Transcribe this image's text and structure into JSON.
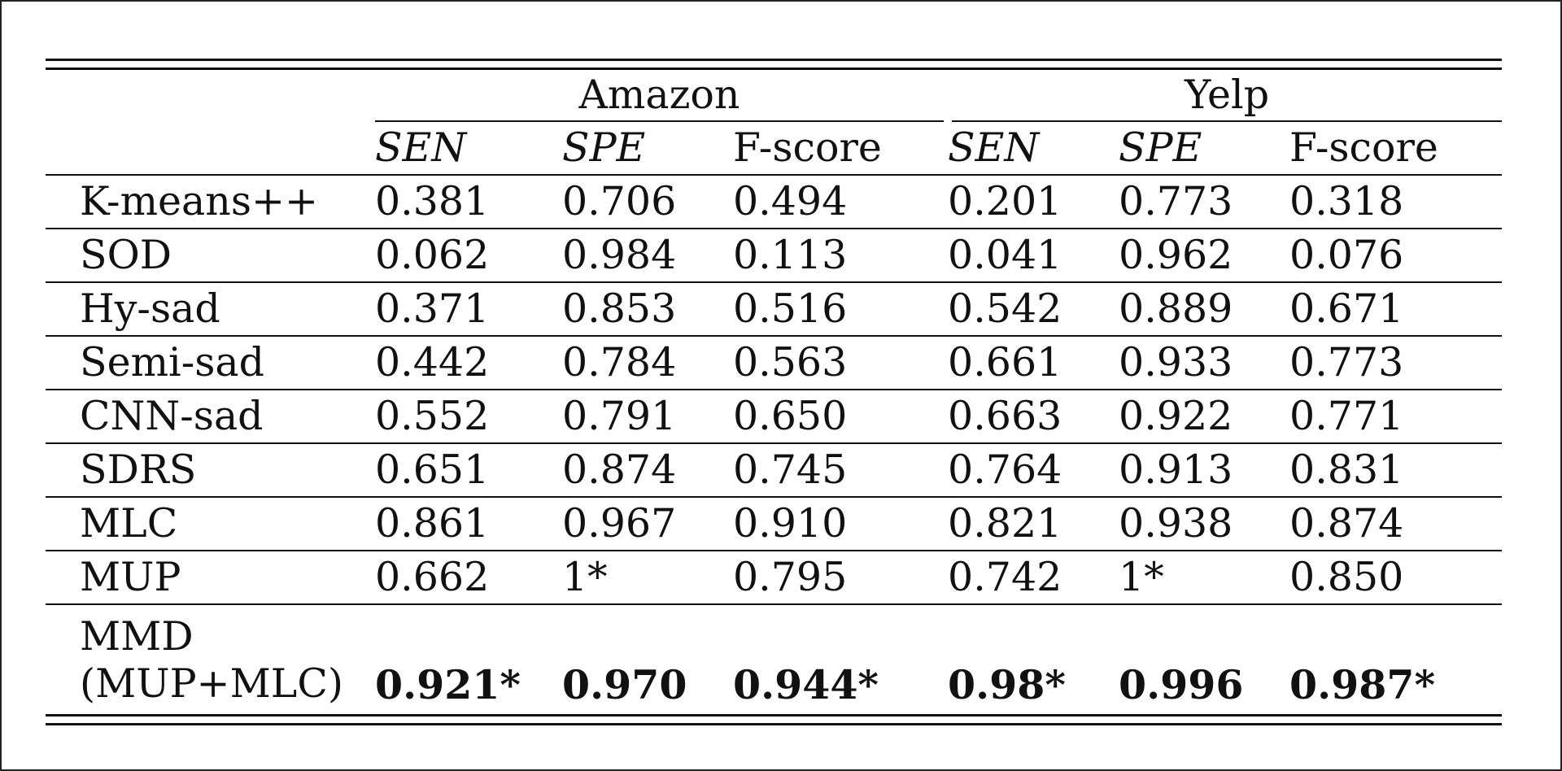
{
  "table": {
    "groups": [
      {
        "label": "Amazon"
      },
      {
        "label": "Yelp"
      }
    ],
    "metrics": [
      "SEN",
      "SPE",
      "F-score",
      "SEN",
      "SPE",
      "F-score"
    ],
    "rows": [
      {
        "method": "K-means++",
        "values": [
          "0.381",
          "0.706",
          "0.494",
          "0.201",
          "0.773",
          "0.318"
        ]
      },
      {
        "method": "SOD",
        "values": [
          "0.062",
          "0.984",
          "0.113",
          "0.041",
          "0.962",
          "0.076"
        ]
      },
      {
        "method": "Hy-sad",
        "values": [
          "0.371",
          "0.853",
          "0.516",
          "0.542",
          "0.889",
          "0.671"
        ]
      },
      {
        "method": "Semi-sad",
        "values": [
          "0.442",
          "0.784",
          "0.563",
          "0.661",
          "0.933",
          "0.773"
        ]
      },
      {
        "method": "CNN-sad",
        "values": [
          "0.552",
          "0.791",
          "0.650",
          "0.663",
          "0.922",
          "0.771"
        ]
      },
      {
        "method": "SDRS",
        "values": [
          "0.651",
          "0.874",
          "0.745",
          "0.764",
          "0.913",
          "0.831"
        ]
      },
      {
        "method": "MLC",
        "values": [
          "0.861",
          "0.967",
          "0.910",
          "0.821",
          "0.938",
          "0.874"
        ]
      },
      {
        "method": "MUP",
        "values": [
          "0.662",
          "1*",
          "0.795",
          "0.742",
          "1*",
          "0.850"
        ]
      }
    ],
    "final_row": {
      "method_line1": "MMD",
      "method_line2": "(MUP+MLC)",
      "values": [
        "0.921*",
        "0.970",
        "0.944*",
        "0.98*",
        "0.996",
        "0.987*"
      ]
    }
  }
}
